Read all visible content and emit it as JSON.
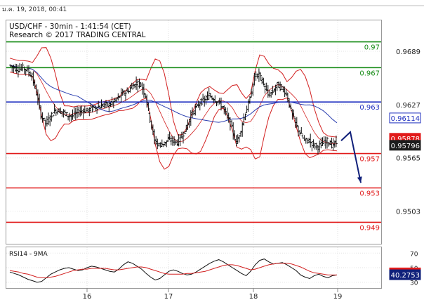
{
  "header": {
    "date": "ม.ค. 19, 2018, 00:41",
    "title": "USD/CHF - 30min - 1:41:54 (CET)",
    "source": "Research © 2017 TRADING CENTRAL"
  },
  "colors": {
    "green": "#138a13",
    "blue": "#1f2fbf",
    "red": "#e11a1a",
    "navy": "#10207a",
    "bollinger": "#d22020",
    "ma": "#2b3fb0",
    "price_badge": "#1c1c1c",
    "candles": "#111111"
  },
  "chart_data": [
    {
      "type": "candlestick",
      "title": "USD/CHF - 30min - 1:41:54 (CET)",
      "x_ticks": [
        "16",
        "17",
        "18",
        "19"
      ],
      "y_ticks": [
        "0.9689",
        "0.9627",
        "0.9565",
        "0.9503"
      ],
      "ylim": [
        0.9465,
        0.9725
      ],
      "levels": [
        {
          "value": 0.97,
          "label": "0.97",
          "color": "green"
        },
        {
          "value": 0.967,
          "label": "0.967",
          "color": "green"
        },
        {
          "value": 0.963,
          "label": "0.963",
          "color": "blue"
        },
        {
          "value": 0.957,
          "label": "0.957",
          "color": "red"
        },
        {
          "value": 0.953,
          "label": "0.953",
          "color": "red"
        },
        {
          "value": 0.949,
          "label": "0.949",
          "color": "red"
        }
      ],
      "price_tags": [
        {
          "value": 0.96114,
          "label": "0.96114",
          "style": "blue"
        },
        {
          "value": 0.95878,
          "label": "0.95878",
          "style": "red"
        },
        {
          "value": 0.95796,
          "label": "0.95796",
          "style": "dark"
        }
      ],
      "close_path": [
        0.9673,
        0.967,
        0.9668,
        0.967,
        0.9667,
        0.966,
        0.964,
        0.9615,
        0.9605,
        0.9612,
        0.962,
        0.962,
        0.9618,
        0.9614,
        0.9614,
        0.9618,
        0.962,
        0.962,
        0.9622,
        0.9624,
        0.9625,
        0.9627,
        0.9627,
        0.963,
        0.9635,
        0.964,
        0.9642,
        0.9648,
        0.9652,
        0.965,
        0.9638,
        0.961,
        0.9585,
        0.958,
        0.9582,
        0.9586,
        0.9585,
        0.9583,
        0.959,
        0.96,
        0.9615,
        0.9622,
        0.963,
        0.9632,
        0.9638,
        0.9634,
        0.963,
        0.9624,
        0.9613,
        0.96,
        0.9582,
        0.9598,
        0.9618,
        0.9633,
        0.966,
        0.9662,
        0.965,
        0.9638,
        0.9642,
        0.965,
        0.9646,
        0.964,
        0.962,
        0.9605,
        0.9594,
        0.9585,
        0.9585,
        0.958,
        0.9578,
        0.9582,
        0.9585,
        0.958,
        0.9582
      ],
      "forecast_arrow": {
        "from_value": 0.9585,
        "to_value": 0.9536
      }
    },
    {
      "type": "line",
      "title": "RSI14 - 9MA",
      "y_ticks": [
        "70",
        "50",
        "30"
      ],
      "ylim": [
        22,
        78
      ],
      "series": [
        {
          "name": "RSI14",
          "values": [
            44,
            42,
            40,
            37,
            34,
            32,
            30,
            31,
            36,
            41,
            44,
            47,
            49,
            50,
            48,
            46,
            47,
            50,
            52,
            51,
            49,
            47,
            45,
            44,
            48,
            54,
            58,
            56,
            52,
            48,
            42,
            37,
            33,
            35,
            40,
            45,
            47,
            45,
            42,
            40,
            41,
            44,
            48,
            52,
            56,
            59,
            61,
            58,
            54,
            50,
            46,
            42,
            39,
            45,
            54,
            60,
            62,
            58,
            55,
            56,
            57,
            54,
            50,
            46,
            40,
            37,
            35,
            39,
            41,
            38,
            36,
            39,
            40
          ]
        },
        {
          "name": "9MA",
          "values": [
            46,
            45,
            44,
            42,
            41,
            39,
            37,
            36,
            36,
            37,
            38,
            40,
            42,
            44,
            46,
            47,
            48,
            48,
            49,
            49,
            49,
            49,
            48,
            47,
            47,
            48,
            49,
            50,
            51,
            51,
            50,
            48,
            46,
            44,
            42,
            41,
            41,
            41,
            41,
            42,
            42,
            43,
            44,
            45,
            47,
            49,
            51,
            53,
            54,
            54,
            53,
            51,
            49,
            47,
            48,
            50,
            52,
            54,
            55,
            56,
            56,
            56,
            55,
            53,
            51,
            48,
            45,
            43,
            42,
            41,
            40,
            40,
            40
          ]
        }
      ],
      "price_tags": [
        {
          "value": 42.843,
          "label": "42.843",
          "style": "red"
        },
        {
          "value": 40.2753,
          "label": "40.2753",
          "style": "navy"
        }
      ]
    }
  ]
}
